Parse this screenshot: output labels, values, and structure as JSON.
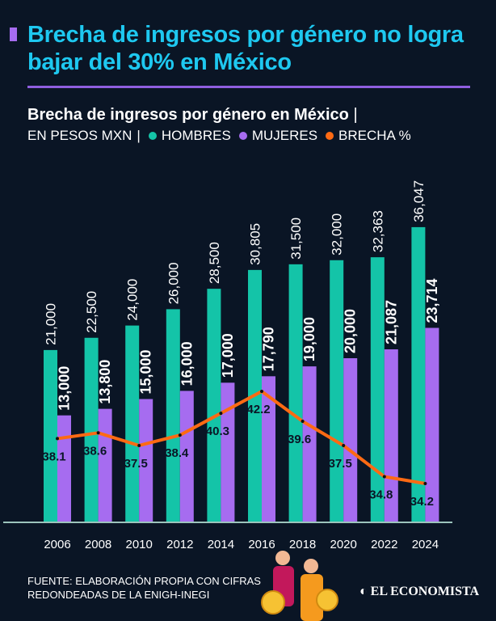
{
  "header": {
    "title": "Brecha de ingresos por género no logra bajar del 30% en México"
  },
  "subtitle": {
    "title": "Brecha de ingresos por género en México",
    "unit": "EN PESOS MXN",
    "sep": "|"
  },
  "legend": [
    {
      "label": "HOMBRES",
      "color": "#14c4a8"
    },
    {
      "label": "MUJERES",
      "color": "#a66cf0"
    },
    {
      "label": "BRECHA %",
      "color": "#ff6a13"
    }
  ],
  "chart_data": {
    "type": "bar",
    "title": "Brecha de ingresos por género en México",
    "ylabel": "EN PESOS MXN",
    "categories": [
      "2006",
      "2008",
      "2010",
      "2012",
      "2014",
      "2016",
      "2018",
      "2020",
      "2022",
      "2024"
    ],
    "series": [
      {
        "name": "HOMBRES",
        "type": "bar",
        "color": "#14c4a8",
        "values": [
          21000,
          22500,
          24000,
          26000,
          28500,
          30805,
          31500,
          32000,
          32363,
          36047
        ],
        "labels": [
          "21,000",
          "22,500",
          "24,000",
          "26,000",
          "28,500",
          "30,805",
          "31,500",
          "32,000",
          "32,363",
          "36,047"
        ]
      },
      {
        "name": "MUJERES",
        "type": "bar",
        "color": "#a66cf0",
        "values": [
          13000,
          13800,
          15000,
          16000,
          17000,
          17790,
          19000,
          20000,
          21087,
          23714
        ],
        "labels": [
          "13,000",
          "13,800",
          "15,000",
          "16,000",
          "17,000",
          "17,790",
          "19,000",
          "20,000",
          "21,087",
          "23,714"
        ]
      },
      {
        "name": "BRECHA %",
        "type": "line",
        "color": "#ff6a13",
        "values": [
          38.1,
          38.6,
          37.5,
          38.4,
          40.3,
          42.2,
          39.6,
          37.5,
          34.8,
          34.2
        ],
        "labels": [
          "38.1",
          "38.6",
          "37.5",
          "38.4",
          "40.3",
          "42.2",
          "39.6",
          "37.5",
          "34.8",
          "34.2"
        ]
      }
    ],
    "ylim": [
      0,
      40000
    ],
    "grid": false,
    "legend_position": "top"
  },
  "footer": {
    "source": "FUENTE: ELABORACIÓN PROPIA CON CIFRAS REDONDEADAS DE LA ENIGH-INEGI",
    "logo": "EL ECONOMISTA"
  }
}
